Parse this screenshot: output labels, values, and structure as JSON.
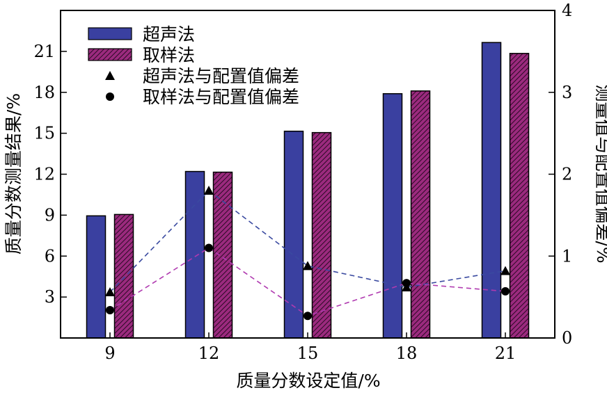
{
  "chart_data": {
    "type": "bar",
    "title": "",
    "xlabel": "质量分数设定值/%",
    "ylabel": "质量分数测量结果/%",
    "y2label": "测量值与配置值偏差/%",
    "categories": [
      "9",
      "12",
      "15",
      "18",
      "21"
    ],
    "ylim": [
      0,
      24
    ],
    "yticks": [
      3,
      6,
      9,
      12,
      15,
      18,
      21
    ],
    "y2lim": [
      0,
      4
    ],
    "y2ticks": [
      0,
      1,
      2,
      3,
      4
    ],
    "grid": false,
    "legend_position": "top-left",
    "series": [
      {
        "name": "超声法",
        "kind": "bar",
        "axis": "left",
        "color": "#3a40a0",
        "values": [
          8.95,
          12.2,
          15.15,
          17.9,
          21.65
        ]
      },
      {
        "name": "取样法",
        "kind": "bar",
        "axis": "left",
        "color": "#9b2a7e",
        "pattern": "hatch",
        "values": [
          9.05,
          12.15,
          15.05,
          18.1,
          20.85
        ]
      },
      {
        "name": "超声法与配置值偏差",
        "kind": "marker",
        "marker": "triangle",
        "axis": "right",
        "line_color": "#3a4aa0",
        "values": [
          0.56,
          1.8,
          0.88,
          0.62,
          0.82
        ]
      },
      {
        "name": "取样法与配置值偏差",
        "kind": "marker",
        "marker": "circle",
        "axis": "right",
        "line_color": "#b03ab0",
        "values": [
          0.34,
          1.1,
          0.27,
          0.67,
          0.57
        ]
      }
    ]
  }
}
